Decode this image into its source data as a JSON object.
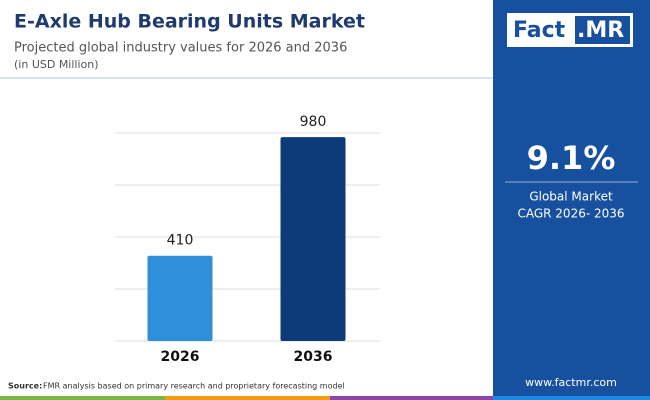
{
  "header": {
    "title": "E-Axle Hub Bearing Units Market",
    "subtitle": "Projected global industry values for 2026 and 2036",
    "unit": "(in USD Million)"
  },
  "chart_data": {
    "type": "bar",
    "categories": [
      "2026",
      "2036"
    ],
    "values": [
      410,
      980
    ],
    "colors": [
      "#2f8fd8",
      "#0d3a78"
    ],
    "ylim": [
      0,
      1000
    ],
    "yticks": [
      0,
      250,
      500,
      750,
      1000
    ],
    "grid": true
  },
  "sidebar": {
    "logo": [
      "Fact",
      ".MR"
    ],
    "cagr": "9.1%",
    "cagr_label": [
      "Global Market",
      "CAGR 2026- 2036"
    ],
    "website": "www.factmr.com"
  },
  "footer": {
    "source_label": "Source:",
    "source_text": "FMR analysis based on primary research and proprietary forecasting model"
  }
}
